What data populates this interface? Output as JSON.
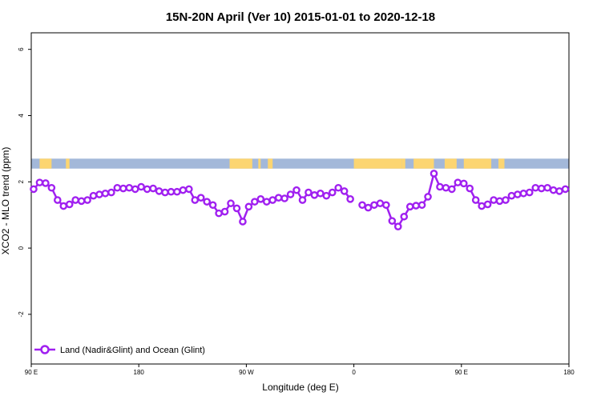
{
  "chart_data": {
    "type": "line",
    "title": "15N-20N April (Ver 10)   2015-01-01 to 2020-12-18",
    "xlabel": "Longitude (deg E)",
    "ylabel": "XCO2 - MLO trend (ppm)",
    "xlim": [
      90,
      540
    ],
    "ylim": [
      -3.5,
      6.5
    ],
    "x_tick_values": [
      90,
      180,
      270,
      360,
      450,
      540
    ],
    "x_tick_labels": [
      "90 E",
      "180",
      "90 W",
      "0",
      "90 E",
      "180"
    ],
    "y_tick_values": [
      -2,
      0,
      2,
      4,
      6
    ],
    "y_tick_labels": [
      "-2",
      "0",
      "2",
      "4",
      "6"
    ],
    "grid": false,
    "legend_position": "bottom-left",
    "map_strip": {
      "y_range": [
        2.4,
        2.7
      ],
      "ocean_color": "#a3b8d9",
      "land_color": "#fcd571",
      "land_segments": [
        [
          97,
          107
        ],
        [
          119,
          122
        ],
        [
          256,
          275
        ],
        [
          280,
          282
        ],
        [
          288,
          292
        ],
        [
          360,
          400
        ],
        [
          400,
          403
        ],
        [
          410,
          427
        ],
        [
          436,
          446
        ],
        [
          452,
          475
        ],
        [
          481,
          486
        ]
      ]
    },
    "series": [
      {
        "name": "Land (Nadir&Glint) and Ocean (Glint)",
        "color": "#a020f0",
        "x": [
          92,
          97,
          102,
          107,
          112,
          117,
          122,
          127,
          132,
          137,
          142,
          147,
          152,
          157,
          162,
          167,
          172,
          177,
          182,
          187,
          192,
          197,
          202,
          207,
          212,
          217,
          222,
          227,
          232,
          237,
          242,
          247,
          252,
          257,
          262,
          267,
          272,
          277,
          282,
          287,
          292,
          297,
          302,
          307,
          312,
          317,
          322,
          327,
          332,
          337,
          342,
          347,
          352,
          357,
          null,
          367,
          372,
          377,
          382,
          387,
          392,
          397,
          402,
          407,
          412,
          417,
          422,
          427,
          432,
          437,
          442,
          447,
          452,
          457,
          462,
          467,
          472,
          477,
          482,
          487,
          492,
          497,
          502,
          507,
          512,
          517,
          522,
          527,
          532,
          537
        ],
        "y": [
          1.78,
          1.98,
          1.96,
          1.82,
          1.45,
          1.27,
          1.32,
          1.45,
          1.42,
          1.45,
          1.58,
          1.62,
          1.65,
          1.68,
          1.82,
          1.8,
          1.82,
          1.78,
          1.85,
          1.78,
          1.8,
          1.72,
          1.68,
          1.7,
          1.7,
          1.75,
          1.78,
          1.45,
          1.52,
          1.4,
          1.3,
          1.05,
          1.1,
          1.35,
          1.2,
          0.8,
          1.25,
          1.4,
          1.48,
          1.4,
          1.45,
          1.52,
          1.5,
          1.62,
          1.75,
          1.45,
          1.68,
          1.6,
          1.65,
          1.58,
          1.68,
          1.82,
          1.72,
          1.48,
          null,
          1.3,
          1.22,
          1.3,
          1.35,
          1.3,
          0.82,
          0.65,
          0.95,
          1.25,
          1.28,
          1.3,
          1.55,
          2.25,
          1.85,
          1.82,
          1.78,
          1.98,
          1.95,
          1.8,
          1.45,
          1.27,
          1.32,
          1.45,
          1.42,
          1.45,
          1.58,
          1.62,
          1.65,
          1.68,
          1.82,
          1.8,
          1.82,
          1.75,
          1.72,
          1.78
        ]
      }
    ]
  }
}
